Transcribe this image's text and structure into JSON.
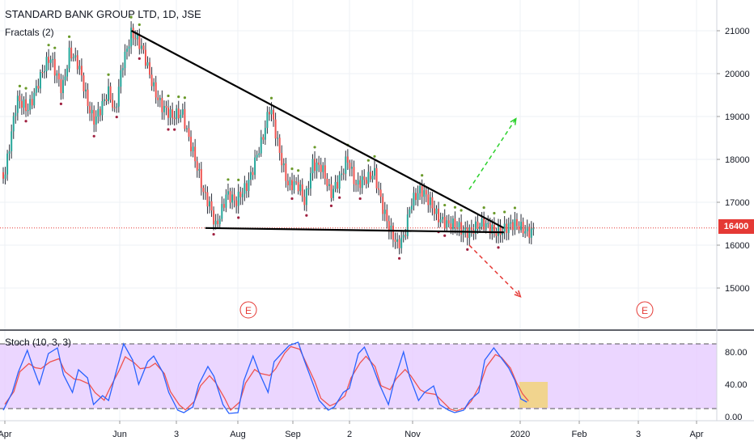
{
  "title": "STANDARD BANK GROUP LTD, 1D, JSE",
  "indicator_label": "Fractals (2)",
  "stoch_label": "Stoch (10, 3, 3)",
  "current_price_label": "16400",
  "colors": {
    "up": "#26a69a",
    "down": "#ef5350",
    "trendline": "#000000",
    "price_line": "#e53935",
    "target_up": "#2bd12b",
    "target_down": "#e53935",
    "stoch_bg": "#e6ccff",
    "stoch_k": "#2962ff",
    "stoch_d": "#ef5350",
    "highlight": "#f2d37a",
    "earnings": "#e53935"
  },
  "chart_data": {
    "type": "candlestick",
    "symbol": "STANDARD BANK GROUP LTD",
    "interval": "1D",
    "exchange": "JSE",
    "price_axis": {
      "ticks": [
        "21000",
        "20000",
        "19000",
        "18000",
        "17000",
        "16000",
        "15000"
      ],
      "range": [
        14000,
        21600
      ]
    },
    "time_axis": {
      "ticks": [
        "Apr",
        "Jun",
        "3",
        "Aug",
        "Sep",
        "2",
        "Nov",
        "2020",
        "Feb",
        "3",
        "Apr"
      ]
    },
    "current_price": 16400,
    "trendlines": [
      {
        "name": "resistance",
        "from": [
          "2019-06-18",
          21000
        ],
        "to": [
          "2020-02-20",
          16400
        ]
      },
      {
        "name": "support",
        "from": [
          "2019-08-06",
          16400
        ],
        "to": [
          "2020-02-20",
          16300
        ]
      }
    ],
    "projections": [
      {
        "direction": "up",
        "from": [
          "2020-01-28",
          17300
        ],
        "to": [
          "2020-02-28",
          18950
        ]
      },
      {
        "direction": "down",
        "from": [
          "2020-01-28",
          16000
        ],
        "to": [
          "2020-03-02",
          14800
        ]
      }
    ],
    "earnings_markers": [
      {
        "label": "E",
        "date": "2019-08-12"
      },
      {
        "label": "E",
        "date": "2020-03-02"
      }
    ],
    "close_path": [
      [
        "2019-03-26",
        17700
      ],
      [
        "2019-04-03",
        19300
      ],
      [
        "2019-04-10",
        19200
      ],
      [
        "2019-04-18",
        19900
      ],
      [
        "2019-04-25",
        20300
      ],
      [
        "2019-05-03",
        19700
      ],
      [
        "2019-05-08",
        20550
      ],
      [
        "2019-05-14",
        20100
      ],
      [
        "2019-05-20",
        19300
      ],
      [
        "2019-05-24",
        19000
      ],
      [
        "2019-06-03",
        19500
      ],
      [
        "2019-06-07",
        19000
      ],
      [
        "2019-06-12",
        20300
      ],
      [
        "2019-06-18",
        21000
      ],
      [
        "2019-06-25",
        20500
      ],
      [
        "2019-07-02",
        19800
      ],
      [
        "2019-07-08",
        19300
      ],
      [
        "2019-07-15",
        18900
      ],
      [
        "2019-07-22",
        19100
      ],
      [
        "2019-07-29",
        18200
      ],
      [
        "2019-08-05",
        17100
      ],
      [
        "2019-08-09",
        16900
      ],
      [
        "2019-08-13",
        16500
      ],
      [
        "2019-08-20",
        17200
      ],
      [
        "2019-08-26",
        16900
      ],
      [
        "2019-09-03",
        17500
      ],
      [
        "2019-09-09",
        18100
      ],
      [
        "2019-09-13",
        18400
      ],
      [
        "2019-09-18",
        19200
      ],
      [
        "2019-09-24",
        18300
      ],
      [
        "2019-09-30",
        17400
      ],
      [
        "2019-10-07",
        17300
      ],
      [
        "2019-10-11",
        17000
      ],
      [
        "2019-10-16",
        18000
      ],
      [
        "2019-10-22",
        17800
      ],
      [
        "2019-10-28",
        17100
      ],
      [
        "2019-11-04",
        17700
      ],
      [
        "2019-11-08",
        18100
      ],
      [
        "2019-11-14",
        17300
      ],
      [
        "2019-11-20",
        17500
      ],
      [
        "2019-11-26",
        17800
      ],
      [
        "2019-12-02",
        16800
      ],
      [
        "2019-12-06",
        16300
      ],
      [
        "2019-12-11",
        16000
      ],
      [
        "2019-12-16",
        16300
      ],
      [
        "2019-12-20",
        17000
      ],
      [
        "2019-12-27",
        17200
      ],
      [
        "2020-01-03",
        17000
      ],
      [
        "2020-01-08",
        16700
      ],
      [
        "2020-01-14",
        16400
      ]
    ],
    "stochastic": {
      "name": "Stoch (10, 3, 3)",
      "ticks": [
        "80.00",
        "40.00",
        "0.00"
      ],
      "range": [
        0,
        100
      ],
      "bands": [
        90,
        10
      ],
      "k_values": [
        [
          0,
          8
        ],
        [
          3,
          30
        ],
        [
          5,
          55
        ],
        [
          8,
          82
        ],
        [
          10,
          60
        ],
        [
          12,
          40
        ],
        [
          15,
          78
        ],
        [
          18,
          85
        ],
        [
          20,
          52
        ],
        [
          23,
          30
        ],
        [
          25,
          58
        ],
        [
          28,
          48
        ],
        [
          30,
          15
        ],
        [
          33,
          26
        ],
        [
          35,
          20
        ],
        [
          38,
          62
        ],
        [
          40,
          90
        ],
        [
          43,
          70
        ],
        [
          45,
          40
        ],
        [
          48,
          68
        ],
        [
          50,
          75
        ],
        [
          53,
          55
        ],
        [
          55,
          30
        ],
        [
          58,
          8
        ],
        [
          60,
          5
        ],
        [
          63,
          12
        ],
        [
          65,
          40
        ],
        [
          68,
          62
        ],
        [
          70,
          50
        ],
        [
          73,
          15
        ],
        [
          75,
          4
        ],
        [
          78,
          5
        ],
        [
          80,
          45
        ],
        [
          83,
          75
        ],
        [
          85,
          55
        ],
        [
          88,
          30
        ],
        [
          90,
          68
        ],
        [
          93,
          80
        ],
        [
          95,
          88
        ],
        [
          98,
          92
        ],
        [
          100,
          70
        ],
        [
          103,
          40
        ],
        [
          105,
          20
        ],
        [
          108,
          8
        ],
        [
          110,
          12
        ],
        [
          113,
          30
        ],
        [
          115,
          35
        ],
        [
          118,
          78
        ],
        [
          120,
          86
        ],
        [
          123,
          60
        ],
        [
          125,
          40
        ],
        [
          128,
          15
        ],
        [
          130,
          45
        ],
        [
          133,
          80
        ],
        [
          135,
          50
        ],
        [
          138,
          20
        ],
        [
          140,
          30
        ],
        [
          143,
          38
        ],
        [
          145,
          15
        ],
        [
          148,
          8
        ],
        [
          150,
          5
        ],
        [
          153,
          8
        ],
        [
          155,
          20
        ],
        [
          158,
          30
        ],
        [
          160,
          70
        ],
        [
          163,
          85
        ],
        [
          165,
          75
        ],
        [
          168,
          60
        ],
        [
          170,
          45
        ],
        [
          172,
          22
        ],
        [
          174,
          18
        ]
      ]
    }
  }
}
